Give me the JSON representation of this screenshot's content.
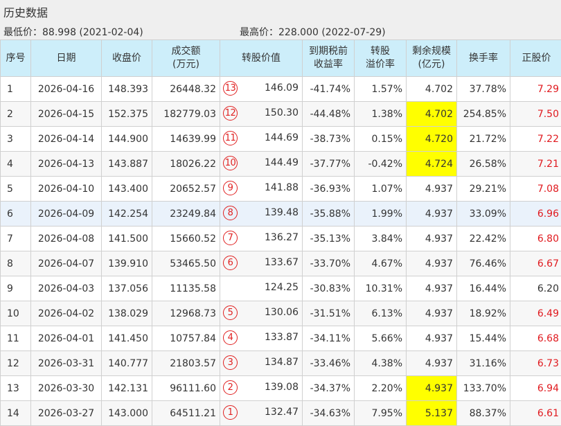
{
  "title": "历史数据",
  "summary": {
    "min_price": "最低价：88.998 (2021-02-04)",
    "max_price": "最高价：228.000 (2022-07-29)"
  },
  "columns": [
    [
      "序号"
    ],
    [
      "日期"
    ],
    [
      "收盘价"
    ],
    [
      "成交额",
      "(万元)"
    ],
    [
      "转股价值"
    ],
    [
      "到期税前",
      "收益率"
    ],
    [
      "转股",
      "溢价率"
    ],
    [
      "剩余规模",
      "(亿元)"
    ],
    [
      "换手率"
    ],
    [
      "正股价"
    ]
  ],
  "colors": {
    "header_bg": "#cdeefa",
    "highlight": "#ffff00",
    "red": "#e0191e",
    "circle": "#e02020"
  },
  "rows": [
    {
      "no": "1",
      "date": "2026-04-16",
      "close": "148.393",
      "amount": "26448.32",
      "badge": "13",
      "conv_value": "146.09",
      "ytm": "-41.74%",
      "premium": "1.57%",
      "scale": "4.702",
      "scale_hl": false,
      "turnover": "37.78%",
      "stock": "7.29",
      "stock_red": true
    },
    {
      "no": "2",
      "date": "2026-04-15",
      "close": "152.375",
      "amount": "182779.03",
      "badge": "12",
      "conv_value": "150.30",
      "ytm": "-44.48%",
      "premium": "1.38%",
      "scale": "4.702",
      "scale_hl": true,
      "turnover": "254.85%",
      "stock": "7.50",
      "stock_red": true
    },
    {
      "no": "3",
      "date": "2026-04-14",
      "close": "144.900",
      "amount": "14639.99",
      "badge": "11",
      "conv_value": "144.69",
      "ytm": "-38.73%",
      "premium": "0.15%",
      "scale": "4.720",
      "scale_hl": true,
      "turnover": "21.72%",
      "stock": "7.22",
      "stock_red": true
    },
    {
      "no": "4",
      "date": "2026-04-13",
      "close": "143.887",
      "amount": "18026.22",
      "badge": "10",
      "conv_value": "144.49",
      "ytm": "-37.77%",
      "premium": "-0.42%",
      "scale": "4.724",
      "scale_hl": true,
      "turnover": "26.58%",
      "stock": "7.21",
      "stock_red": true
    },
    {
      "no": "5",
      "date": "2026-04-10",
      "close": "143.400",
      "amount": "20652.57",
      "badge": "9",
      "conv_value": "141.88",
      "ytm": "-36.93%",
      "premium": "1.07%",
      "scale": "4.937",
      "scale_hl": false,
      "turnover": "29.21%",
      "stock": "7.08",
      "stock_red": true
    },
    {
      "no": "6",
      "date": "2026-04-09",
      "close": "142.254",
      "amount": "23249.84",
      "badge": "8",
      "conv_value": "139.48",
      "ytm": "-35.88%",
      "premium": "1.99%",
      "scale": "4.937",
      "scale_hl": false,
      "turnover": "33.09%",
      "stock": "6.96",
      "stock_red": true
    },
    {
      "no": "7",
      "date": "2026-04-08",
      "close": "141.500",
      "amount": "15660.52",
      "badge": "7",
      "conv_value": "136.27",
      "ytm": "-35.13%",
      "premium": "3.84%",
      "scale": "4.937",
      "scale_hl": false,
      "turnover": "22.42%",
      "stock": "6.80",
      "stock_red": true
    },
    {
      "no": "8",
      "date": "2026-04-07",
      "close": "139.910",
      "amount": "53465.50",
      "badge": "6",
      "conv_value": "133.67",
      "ytm": "-33.70%",
      "premium": "4.67%",
      "scale": "4.937",
      "scale_hl": false,
      "turnover": "76.46%",
      "stock": "6.67",
      "stock_red": true
    },
    {
      "no": "9",
      "date": "2026-04-03",
      "close": "137.056",
      "amount": "11135.58",
      "badge": "",
      "conv_value": "124.25",
      "ytm": "-30.83%",
      "premium": "10.31%",
      "scale": "4.937",
      "scale_hl": false,
      "turnover": "16.44%",
      "stock": "6.20",
      "stock_red": false
    },
    {
      "no": "10",
      "date": "2026-04-02",
      "close": "138.029",
      "amount": "12968.73",
      "badge": "5",
      "conv_value": "130.06",
      "ytm": "-31.51%",
      "premium": "6.13%",
      "scale": "4.937",
      "scale_hl": false,
      "turnover": "18.92%",
      "stock": "6.49",
      "stock_red": true
    },
    {
      "no": "11",
      "date": "2026-04-01",
      "close": "141.450",
      "amount": "10757.84",
      "badge": "4",
      "conv_value": "133.87",
      "ytm": "-34.11%",
      "premium": "5.66%",
      "scale": "4.937",
      "scale_hl": false,
      "turnover": "15.44%",
      "stock": "6.68",
      "stock_red": true
    },
    {
      "no": "12",
      "date": "2026-03-31",
      "close": "140.777",
      "amount": "21803.57",
      "badge": "3",
      "conv_value": "134.87",
      "ytm": "-33.46%",
      "premium": "4.38%",
      "scale": "4.937",
      "scale_hl": false,
      "turnover": "31.16%",
      "stock": "6.73",
      "stock_red": true
    },
    {
      "no": "13",
      "date": "2026-03-30",
      "close": "142.131",
      "amount": "96111.60",
      "badge": "2",
      "conv_value": "139.08",
      "ytm": "-34.37%",
      "premium": "2.20%",
      "scale": "4.937",
      "scale_hl": true,
      "turnover": "133.70%",
      "stock": "6.94",
      "stock_red": true
    },
    {
      "no": "14",
      "date": "2026-03-27",
      "close": "143.000",
      "amount": "64511.21",
      "badge": "1",
      "conv_value": "132.47",
      "ytm": "-34.63%",
      "premium": "7.95%",
      "scale": "5.137",
      "scale_hl": true,
      "turnover": "88.37%",
      "stock": "6.61",
      "stock_red": true
    }
  ]
}
